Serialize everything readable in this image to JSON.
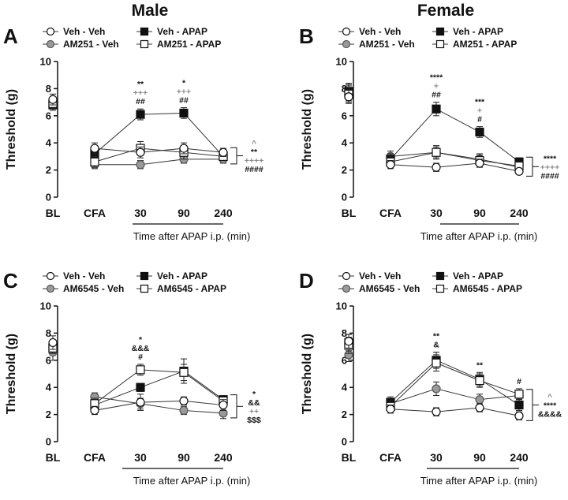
{
  "column_titles": [
    "Male",
    "Female"
  ],
  "colors": {
    "veh_veh": "#ffffff",
    "am_veh": "#9a9a9a",
    "veh_apap": "#111111",
    "am_apap": "#ffffff",
    "sig_veh_veh": "#111111",
    "sig_gray": "#8a8a8a"
  },
  "chart_data": [
    {
      "panel": "A",
      "type": "line",
      "title": "Male",
      "ylabel": "Threshold (g)",
      "xlabel": "Time after APAP i.p. (min)",
      "categories": [
        "BL",
        "CFA",
        "30",
        "90",
        "240"
      ],
      "ylim": [
        0,
        10
      ],
      "yticks": [
        0,
        2,
        4,
        6,
        8,
        10
      ],
      "legend": [
        "Veh - Veh",
        "AM251 -  Veh",
        "Veh - APAP",
        "AM251 - APAP"
      ],
      "series": [
        {
          "name": "Veh - Veh",
          "values": [
            7.2,
            3.6,
            3.3,
            3.6,
            3.3
          ],
          "errors": [
            0.4,
            0.4,
            0.4,
            0.4,
            0.3
          ]
        },
        {
          "name": "AM251 -  Veh",
          "values": [
            6.9,
            2.4,
            2.4,
            2.8,
            2.8
          ],
          "errors": [
            0.3,
            0.3,
            0.3,
            0.3,
            0.3
          ]
        },
        {
          "name": "Veh - APAP",
          "values": [
            6.8,
            3.2,
            6.1,
            6.2,
            3.0
          ],
          "errors": [
            0.4,
            0.4,
            0.4,
            0.4,
            0.3
          ]
        },
        {
          "name": "AM251 - APAP",
          "values": [
            6.9,
            2.6,
            3.6,
            3.3,
            3.0
          ],
          "errors": [
            0.4,
            0.4,
            0.5,
            0.5,
            0.3
          ]
        }
      ],
      "annotations": [
        {
          "x": 2,
          "lines": [
            {
              "text": "**",
              "series": 0
            },
            {
              "text": "+++",
              "series": 1
            },
            {
              "text": "##",
              "series": 3
            }
          ]
        },
        {
          "x": 3,
          "lines": [
            {
              "text": "*",
              "series": 0
            },
            {
              "text": "+++",
              "series": 1
            },
            {
              "text": "##",
              "series": 3
            }
          ]
        }
      ],
      "bracket_sig": [
        {
          "text": "^",
          "series": 1
        },
        {
          "text": "**",
          "series": 0
        },
        {
          "text": "++++",
          "series": 1
        },
        {
          "text": "####",
          "series": 3
        }
      ]
    },
    {
      "panel": "B",
      "type": "line",
      "title": "Female",
      "ylabel": "Threshold (g)",
      "xlabel": "Time after APAP i.p. (min)",
      "categories": [
        "BL",
        "CFA",
        "30",
        "90",
        "240"
      ],
      "ylim": [
        0,
        10
      ],
      "yticks": [
        0,
        2,
        4,
        6,
        8,
        10
      ],
      "legend": [
        "Veh - Veh",
        "AM251 -  Veh",
        "Veh - APAP",
        "AM251 - APAP"
      ],
      "series": [
        {
          "name": "Veh - Veh",
          "values": [
            7.4,
            2.4,
            2.2,
            2.5,
            1.9
          ],
          "errors": [
            0.5,
            0.3,
            0.3,
            0.3,
            0.2
          ]
        },
        {
          "name": "AM251 -  Veh",
          "values": [
            7.7,
            3.0,
            3.3,
            2.8,
            2.2
          ],
          "errors": [
            0.6,
            0.4,
            0.4,
            0.4,
            0.3
          ]
        },
        {
          "name": "Veh - APAP",
          "values": [
            7.8,
            2.8,
            6.5,
            4.8,
            2.6
          ],
          "errors": [
            0.6,
            0.4,
            0.5,
            0.4,
            0.3
          ]
        },
        {
          "name": "AM251 - APAP",
          "values": [
            7.6,
            2.6,
            3.3,
            2.7,
            2.3
          ],
          "errors": [
            0.6,
            0.4,
            0.5,
            0.4,
            0.3
          ]
        }
      ],
      "annotations": [
        {
          "x": 2,
          "lines": [
            {
              "text": "****",
              "series": 0
            },
            {
              "text": "+",
              "series": 1
            },
            {
              "text": "##",
              "series": 3
            }
          ]
        },
        {
          "x": 3,
          "lines": [
            {
              "text": "***",
              "series": 0
            },
            {
              "text": "+",
              "series": 1
            },
            {
              "text": "#",
              "series": 3
            }
          ]
        }
      ],
      "bracket_sig": [
        {
          "text": "****",
          "series": 0
        },
        {
          "text": "++++",
          "series": 1
        },
        {
          "text": "####",
          "series": 3
        }
      ]
    },
    {
      "panel": "C",
      "type": "line",
      "title": "Male",
      "ylabel": "Threshold (g)",
      "xlabel": "Time after APAP i.p. (min)",
      "categories": [
        "BL",
        "CFA",
        "30",
        "90",
        "240"
      ],
      "ylim": [
        0,
        10
      ],
      "yticks": [
        0,
        2,
        4,
        6,
        8,
        10
      ],
      "legend": [
        "Veh - Veh",
        "AM6545 -  Veh",
        "Veh - APAP",
        "AM6545 - APAP"
      ],
      "series": [
        {
          "name": "Veh - Veh",
          "values": [
            7.3,
            2.3,
            2.9,
            3.0,
            2.7
          ],
          "errors": [
            0.5,
            0.3,
            0.6,
            0.3,
            0.4
          ]
        },
        {
          "name": "AM6545 -  Veh",
          "values": [
            6.6,
            3.3,
            2.8,
            2.3,
            2.1
          ],
          "errors": [
            0.6,
            0.3,
            0.4,
            0.3,
            0.4
          ]
        },
        {
          "name": "Veh - APAP",
          "values": [
            6.9,
            2.7,
            4.0,
            5.2,
            3.1
          ],
          "errors": [
            0.4,
            0.4,
            0.3,
            0.9,
            0.3
          ]
        },
        {
          "name": "AM6545 - APAP",
          "values": [
            6.9,
            2.8,
            5.3,
            5.1,
            3.0
          ],
          "errors": [
            0.4,
            0.4,
            0.4,
            0.6,
            0.4
          ]
        }
      ],
      "annotations": [
        {
          "x": 2,
          "lines": [
            {
              "text": "*",
              "series": 0
            },
            {
              "text": "&&&",
              "series": 0
            },
            {
              "text": "#",
              "series": 0
            }
          ]
        }
      ],
      "bracket_sig": [
        {
          "text": "*",
          "series": 0
        },
        {
          "text": "&&",
          "series": 0
        },
        {
          "text": "++",
          "series": 1
        },
        {
          "text": "$$$",
          "series": 0
        }
      ]
    },
    {
      "panel": "D",
      "type": "line",
      "title": "Female",
      "ylabel": "Threshold (g)",
      "xlabel": "Time after APAP i.p. (min)",
      "categories": [
        "BL",
        "CFA",
        "30",
        "90",
        "240"
      ],
      "ylim": [
        0,
        10
      ],
      "yticks": [
        0,
        2,
        4,
        6,
        8,
        10
      ],
      "legend": [
        "Veh - Veh",
        "AM6545 -  Veh",
        "Veh - APAP",
        "AM6545 - APAP"
      ],
      "series": [
        {
          "name": "Veh - Veh",
          "values": [
            7.4,
            2.4,
            2.2,
            2.5,
            1.9
          ],
          "errors": [
            0.5,
            0.3,
            0.3,
            0.3,
            0.3
          ]
        },
        {
          "name": "AM6545 -  Veh",
          "values": [
            6.4,
            2.8,
            3.9,
            3.1,
            3.4
          ],
          "errors": [
            0.5,
            0.4,
            0.5,
            0.4,
            0.3
          ]
        },
        {
          "name": "Veh - APAP",
          "values": [
            7.3,
            2.9,
            6.0,
            4.6,
            2.7
          ],
          "errors": [
            0.6,
            0.4,
            0.6,
            0.5,
            0.4
          ]
        },
        {
          "name": "AM6545 - APAP",
          "values": [
            7.1,
            2.6,
            5.8,
            4.5,
            3.5
          ],
          "errors": [
            0.6,
            0.4,
            0.6,
            0.5,
            0.4
          ]
        }
      ],
      "annotations": [
        {
          "x": 2,
          "lines": [
            {
              "text": "**",
              "series": 0
            },
            {
              "text": "&",
              "series": 0
            }
          ]
        },
        {
          "x": 3,
          "lines": [
            {
              "text": "**",
              "series": 0
            }
          ]
        },
        {
          "x": 4,
          "lines": [
            {
              "text": "#",
              "series": 0
            }
          ]
        }
      ],
      "bracket_sig": [
        {
          "text": "^",
          "series": 1
        },
        {
          "text": "****",
          "series": 0
        },
        {
          "text": "&&&&",
          "series": 0
        }
      ]
    }
  ]
}
